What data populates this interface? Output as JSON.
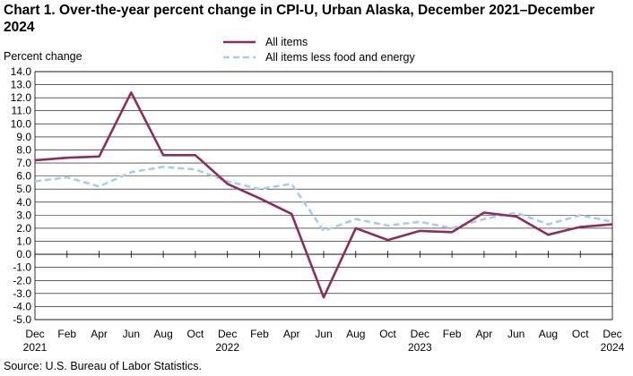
{
  "chart_data": {
    "type": "line",
    "title": "Chart 1. Over-the-year percent change in CPI-U, Urban Alaska, December 2021–December 2024",
    "ylabel": "Percent change",
    "xlabel": "",
    "ylim": [
      -5.0,
      14.0
    ],
    "ytick_step": 1.0,
    "grid": "horizontal",
    "legend_placement": "top",
    "x_tick_labels": [
      {
        "label": "Dec",
        "year": "2021"
      },
      {
        "label": "Feb",
        "year": ""
      },
      {
        "label": "Apr",
        "year": ""
      },
      {
        "label": "Jun",
        "year": ""
      },
      {
        "label": "Aug",
        "year": ""
      },
      {
        "label": "Oct",
        "year": ""
      },
      {
        "label": "Dec",
        "year": "2022"
      },
      {
        "label": "Feb",
        "year": ""
      },
      {
        "label": "Apr",
        "year": ""
      },
      {
        "label": "Jun",
        "year": ""
      },
      {
        "label": "Aug",
        "year": ""
      },
      {
        "label": "Oct",
        "year": ""
      },
      {
        "label": "Dec",
        "year": "2023"
      },
      {
        "label": "Feb",
        "year": ""
      },
      {
        "label": "Apr",
        "year": ""
      },
      {
        "label": "Jun",
        "year": ""
      },
      {
        "label": "Aug",
        "year": ""
      },
      {
        "label": "Oct",
        "year": ""
      },
      {
        "label": "Dec",
        "year": "2024"
      }
    ],
    "series": [
      {
        "name": "All items",
        "color": "#8e2d5c",
        "style": "solid",
        "values": [
          7.2,
          7.4,
          7.5,
          12.4,
          7.6,
          7.6,
          5.4,
          4.3,
          3.1,
          -3.3,
          2.0,
          1.1,
          1.8,
          1.7,
          3.2,
          2.9,
          1.5,
          2.1,
          2.3
        ]
      },
      {
        "name": "All items less food and energy",
        "color": "#a6cdf0",
        "style": "dashed",
        "values": [
          5.6,
          5.9,
          5.2,
          6.3,
          6.7,
          6.5,
          5.6,
          5.0,
          5.4,
          1.8,
          2.7,
          2.2,
          2.5,
          2.0,
          2.7,
          3.2,
          2.3,
          3.0,
          2.5
        ]
      }
    ]
  },
  "footer": {
    "source": "Source: U.S. Bureau of Labor Statistics."
  }
}
